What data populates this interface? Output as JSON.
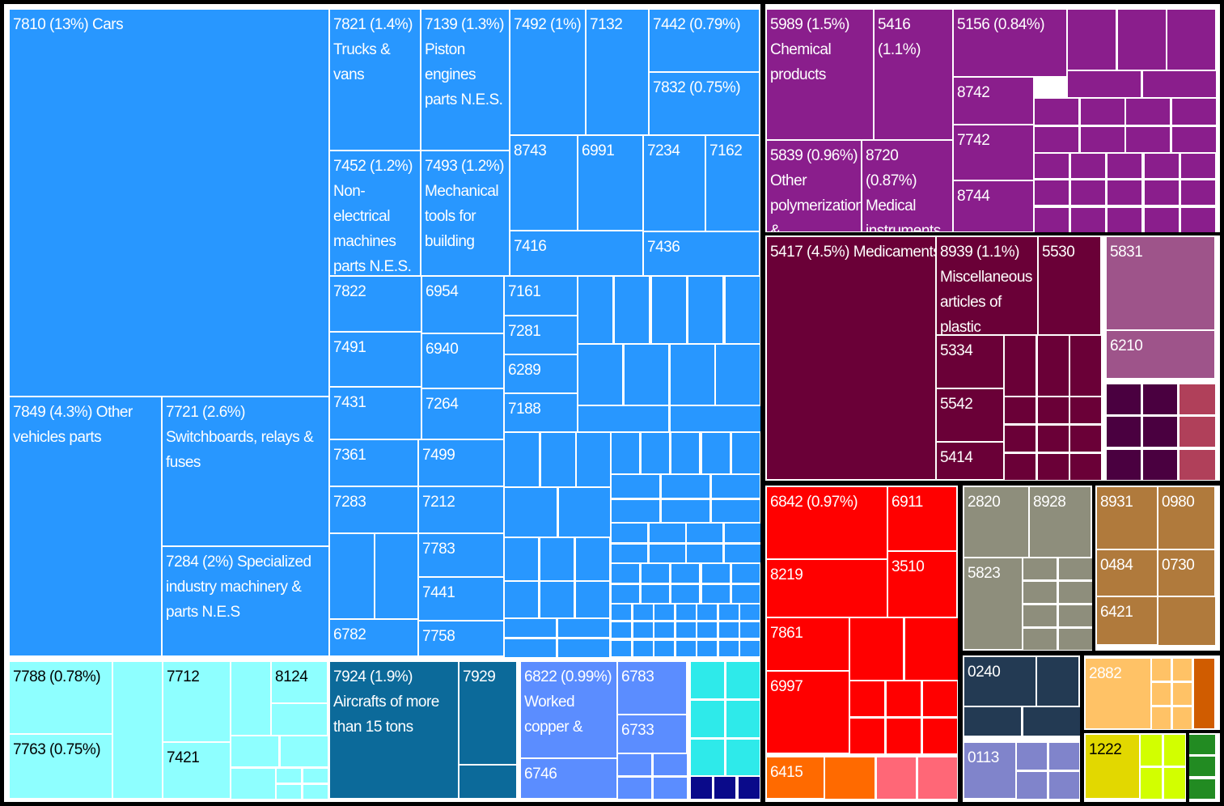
{
  "chart_data": {
    "type": "treemap",
    "title": "",
    "groups": [
      {
        "color": "#2897FF",
        "items": [
          {
            "code": "7810",
            "share": "13%",
            "name": "Cars"
          },
          {
            "code": "7849",
            "share": "4.3%",
            "name": "Other vehicles parts"
          },
          {
            "code": "7721",
            "share": "2.6%",
            "name": "Switchboards, relays & fuses"
          },
          {
            "code": "7284",
            "share": "2%",
            "name": "Specialized industry machinery & parts N.E.S"
          },
          {
            "code": "7821",
            "share": "1.4%",
            "name": "Trucks & vans"
          },
          {
            "code": "7139",
            "share": "1.3%",
            "name": "Piston engines parts N.E.S."
          },
          {
            "code": "7452",
            "share": "1.2%",
            "name": "Non-electrical machines parts N.E.S."
          },
          {
            "code": "7493",
            "share": "1.2%",
            "name": "Mechanical tools for building"
          },
          {
            "code": "7492",
            "share": "1%",
            "name": ""
          },
          {
            "code": "7442",
            "share": "0.79%",
            "name": ""
          },
          {
            "code": "7832",
            "share": "0.75%",
            "name": ""
          },
          {
            "code": "7132"
          },
          {
            "code": "8743"
          },
          {
            "code": "6991"
          },
          {
            "code": "7234"
          },
          {
            "code": "7162"
          },
          {
            "code": "7416"
          },
          {
            "code": "7436"
          },
          {
            "code": "7822"
          },
          {
            "code": "6954"
          },
          {
            "code": "7161"
          },
          {
            "code": "7281"
          },
          {
            "code": "6289"
          },
          {
            "code": "7188"
          },
          {
            "code": "7491"
          },
          {
            "code": "6940"
          },
          {
            "code": "7431"
          },
          {
            "code": "7264"
          },
          {
            "code": "7361"
          },
          {
            "code": "7499"
          },
          {
            "code": "7283"
          },
          {
            "code": "7212"
          },
          {
            "code": "7783"
          },
          {
            "code": "7441"
          },
          {
            "code": "6782"
          },
          {
            "code": "7758"
          }
        ]
      },
      {
        "color": "#8EFFFF",
        "items": [
          {
            "code": "7788",
            "share": "0.78%",
            "name": ""
          },
          {
            "code": "7763",
            "share": "0.75%",
            "name": ""
          },
          {
            "code": "7712"
          },
          {
            "code": "8124"
          },
          {
            "code": "7421"
          }
        ]
      },
      {
        "color": "#0C6A9A",
        "items": [
          {
            "code": "7924",
            "share": "1.9%",
            "name": "Aircrafts of more than 15 tons"
          },
          {
            "code": "7929"
          }
        ]
      },
      {
        "color": "#5B8DFF",
        "items": [
          {
            "code": "6822",
            "share": "0.99%",
            "name": "Worked copper &"
          },
          {
            "code": "6783"
          },
          {
            "code": "6733"
          },
          {
            "code": "6746"
          }
        ]
      },
      {
        "color": "#8A1E8C",
        "items": [
          {
            "code": "5989",
            "share": "1.5%",
            "name": "Chemical products"
          },
          {
            "code": "5416",
            "share": "1.1%",
            "name": ""
          },
          {
            "code": "5156",
            "share": "0.84%",
            "name": ""
          },
          {
            "code": "5839",
            "share": "0.96%",
            "name": "Other polymerization &"
          },
          {
            "code": "8720",
            "share": "0.87%",
            "name": "Medical instruments"
          },
          {
            "code": "8742"
          },
          {
            "code": "7742"
          },
          {
            "code": "8744"
          }
        ]
      },
      {
        "color": "#6A0037",
        "items": [
          {
            "code": "5417",
            "share": "4.5%",
            "name": "Medicaments"
          },
          {
            "code": "8939",
            "share": "1.1%",
            "name": "Miscellaneous articles of plastic"
          },
          {
            "code": "5530"
          },
          {
            "code": "5334"
          },
          {
            "code": "5542"
          },
          {
            "code": "5414"
          }
        ]
      },
      {
        "color": "#9E548A",
        "items": [
          {
            "code": "5831"
          },
          {
            "code": "6210"
          }
        ]
      },
      {
        "color": "#FF0000",
        "items": [
          {
            "code": "6842",
            "share": "0.97%",
            "name": ""
          },
          {
            "code": "6911"
          },
          {
            "code": "8219"
          },
          {
            "code": "3510"
          },
          {
            "code": "7861"
          },
          {
            "code": "6997"
          }
        ]
      },
      {
        "color": "#FF6A00",
        "items": [
          {
            "code": "6415"
          }
        ]
      },
      {
        "color": "#8E8E7C",
        "items": [
          {
            "code": "2820"
          },
          {
            "code": "8928"
          },
          {
            "code": "5823"
          }
        ]
      },
      {
        "color": "#B07A3C",
        "items": [
          {
            "code": "8931"
          },
          {
            "code": "0980"
          },
          {
            "code": "0484"
          },
          {
            "code": "0730"
          },
          {
            "code": "6421"
          }
        ]
      },
      {
        "color": "#233A53",
        "items": [
          {
            "code": "0240"
          }
        ]
      },
      {
        "color": "#8084CB",
        "items": [
          {
            "code": "0113"
          }
        ]
      },
      {
        "color": "#FFC266",
        "items": [
          {
            "code": "2882"
          }
        ]
      },
      {
        "color": "#E2D800",
        "items": [
          {
            "code": "1222"
          }
        ]
      }
    ]
  }
}
